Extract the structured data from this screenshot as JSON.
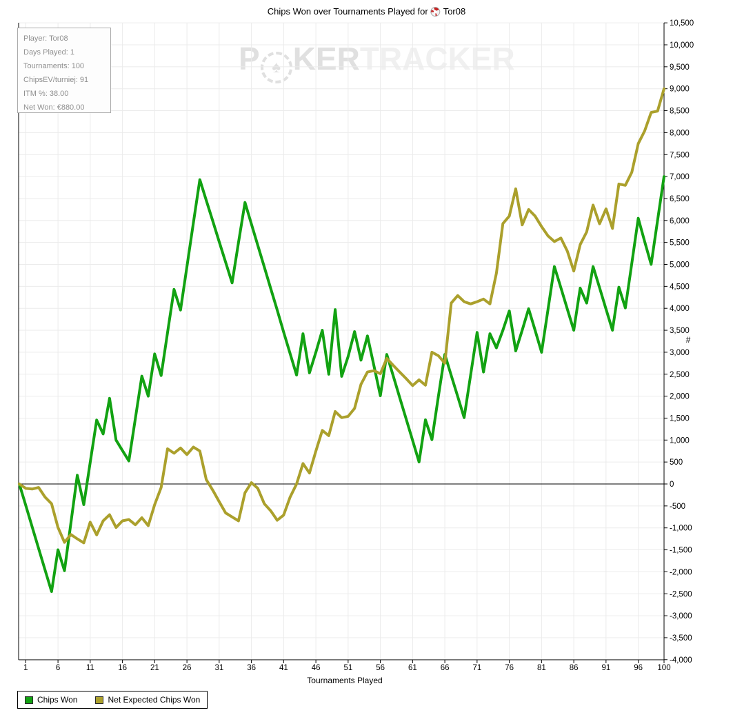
{
  "title": {
    "prefix": "Chips Won over Tournaments Played for",
    "player": "Tor08",
    "icon": "poker-chip-icon"
  },
  "watermark": {
    "part_p": "P",
    "chip_symbol": "♠",
    "part_ker": "KER",
    "part_tracker": "TRACKER"
  },
  "info_box": {
    "lines": [
      "Player: Tor08",
      "Days Played: 1",
      "Tournaments: 100",
      "ChipsEV/turniej: 91",
      "ITM %: 38.00",
      "Net Won: €880.00"
    ]
  },
  "legend": {
    "items": [
      {
        "label": "Chips Won",
        "color": "#12a212"
      },
      {
        "label": "Net Expected Chips Won",
        "color": "#aba02c"
      }
    ]
  },
  "axes": {
    "x_title": "Tournaments Played",
    "y_title": "#"
  },
  "chart_data": {
    "type": "line",
    "title": "Chips Won over Tournaments Played for Tor08",
    "xlabel": "Tournaments Played",
    "ylabel": "#",
    "xlim": [
      0,
      100
    ],
    "ylim": [
      -4000,
      10500
    ],
    "ytick_step": 500,
    "xticks": [
      1,
      6,
      11,
      16,
      21,
      26,
      31,
      36,
      41,
      46,
      51,
      56,
      61,
      66,
      71,
      76,
      81,
      86,
      91,
      96,
      100
    ],
    "grid": true,
    "legend_position": "bottom-left",
    "x": [
      0,
      1,
      2,
      3,
      4,
      5,
      6,
      7,
      8,
      9,
      10,
      11,
      12,
      13,
      14,
      15,
      16,
      17,
      18,
      19,
      20,
      21,
      22,
      23,
      24,
      25,
      26,
      27,
      28,
      29,
      30,
      31,
      32,
      33,
      34,
      35,
      36,
      37,
      38,
      39,
      40,
      41,
      42,
      43,
      44,
      45,
      46,
      47,
      48,
      49,
      50,
      51,
      52,
      53,
      54,
      55,
      56,
      57,
      58,
      59,
      60,
      61,
      62,
      63,
      64,
      65,
      66,
      67,
      68,
      69,
      70,
      71,
      72,
      73,
      74,
      75,
      76,
      77,
      78,
      79,
      80,
      81,
      82,
      83,
      84,
      85,
      86,
      87,
      88,
      89,
      90,
      91,
      92,
      93,
      94,
      95,
      96,
      97,
      98,
      99,
      100
    ],
    "series": [
      {
        "name": "Chips Won",
        "color": "#12a212",
        "values": [
          0,
          -490,
          -980,
          -1470,
          -1960,
          -2450,
          -1500,
          -1975,
          -890,
          200,
          -470,
          490,
          1455,
          1140,
          1950,
          1000,
          760,
          525,
          1490,
          2455,
          2000,
          2960,
          2470,
          3450,
          4430,
          3960,
          4950,
          5940,
          6930,
          6460,
          5990,
          5520,
          5050,
          4580,
          5500,
          6410,
          5920,
          5430,
          4940,
          4450,
          3960,
          3460,
          2970,
          2480,
          3420,
          2530,
          3000,
          3500,
          2500,
          3970,
          2450,
          2900,
          3470,
          2820,
          3370,
          2690,
          2010,
          2950,
          2460,
          1970,
          1480,
          990,
          500,
          1460,
          1010,
          2000,
          2950,
          2470,
          1990,
          1510,
          2480,
          3450,
          2550,
          3420,
          3100,
          3500,
          3940,
          3030,
          3500,
          3990,
          3500,
          3000,
          3970,
          4950,
          4470,
          3980,
          3500,
          4460,
          4120,
          4950,
          4470,
          3980,
          3500,
          4480,
          4010,
          5030,
          6050,
          5520,
          5000,
          6000,
          7000
        ]
      },
      {
        "name": "Net Expected Chips Won",
        "color": "#aba02c",
        "values": [
          0,
          -100,
          -115,
          -80,
          -300,
          -450,
          -990,
          -1330,
          -1150,
          -1250,
          -1340,
          -870,
          -1160,
          -840,
          -700,
          -990,
          -840,
          -810,
          -930,
          -770,
          -950,
          -470,
          -80,
          800,
          700,
          820,
          670,
          840,
          750,
          100,
          -140,
          -400,
          -660,
          -750,
          -840,
          -200,
          30,
          -100,
          -450,
          -610,
          -825,
          -710,
          -300,
          0,
          465,
          250,
          750,
          1220,
          1100,
          1650,
          1510,
          1540,
          1720,
          2270,
          2550,
          2580,
          2510,
          2860,
          2700,
          2550,
          2400,
          2240,
          2370,
          2250,
          3000,
          2920,
          2750,
          4120,
          4290,
          4150,
          4100,
          4150,
          4210,
          4100,
          4800,
          5930,
          6100,
          6720,
          5900,
          6250,
          6100,
          5860,
          5650,
          5520,
          5600,
          5300,
          4850,
          5450,
          5740,
          6350,
          5925,
          6265,
          5820,
          6830,
          6800,
          7100,
          7750,
          8040,
          8460,
          8490,
          9000
        ]
      }
    ]
  }
}
